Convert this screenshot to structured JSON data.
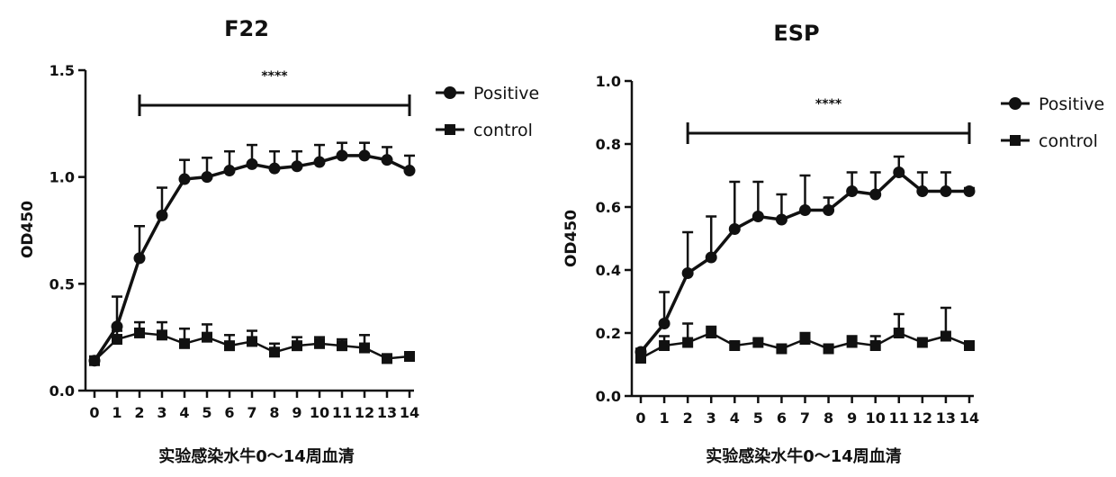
{
  "chart_data": [
    {
      "type": "line",
      "title": "F22",
      "ylabel": "OD450",
      "xlabel": "实验感染水牛0～14周血清",
      "ylim": [
        0,
        1.5
      ],
      "y_ticks": [
        "0.0",
        "0.5",
        "1.0",
        "1.5"
      ],
      "categories": [
        "0",
        "1",
        "2",
        "3",
        "4",
        "5",
        "6",
        "7",
        "8",
        "9",
        "10",
        "11",
        "12",
        "13",
        "14"
      ],
      "series": [
        {
          "name": "Positive",
          "marker": "circle",
          "values": [
            0.14,
            0.3,
            0.62,
            0.82,
            0.99,
            1.0,
            1.03,
            1.06,
            1.04,
            1.05,
            1.07,
            1.1,
            1.1,
            1.08,
            1.03
          ],
          "error": [
            0.01,
            0.14,
            0.15,
            0.13,
            0.09,
            0.09,
            0.09,
            0.09,
            0.08,
            0.07,
            0.08,
            0.06,
            0.06,
            0.06,
            0.07
          ]
        },
        {
          "name": "control",
          "marker": "square",
          "values": [
            0.14,
            0.24,
            0.27,
            0.26,
            0.22,
            0.25,
            0.21,
            0.23,
            0.18,
            0.21,
            0.22,
            0.21,
            0.2,
            0.15,
            0.16
          ],
          "error": [
            0.01,
            0.04,
            0.05,
            0.06,
            0.07,
            0.06,
            0.05,
            0.05,
            0.04,
            0.04,
            0.03,
            0.03,
            0.06,
            0.02,
            0.02
          ]
        }
      ],
      "significance": {
        "label": "****",
        "from": "2",
        "to": "14"
      },
      "legend": "right",
      "grid": false
    },
    {
      "type": "line",
      "title": "ESP",
      "ylabel": "OD450",
      "xlabel": "实验感染水牛0～14周血清",
      "ylim": [
        0,
        1.0
      ],
      "y_ticks": [
        "0.0",
        "0.2",
        "0.4",
        "0.6",
        "0.8",
        "1.0"
      ],
      "categories": [
        "0",
        "1",
        "2",
        "3",
        "4",
        "5",
        "6",
        "7",
        "8",
        "9",
        "10",
        "11",
        "12",
        "13",
        "14"
      ],
      "series": [
        {
          "name": "Positive",
          "marker": "circle",
          "values": [
            0.14,
            0.23,
            0.39,
            0.44,
            0.53,
            0.57,
            0.56,
            0.59,
            0.59,
            0.65,
            0.64,
            0.71,
            0.65,
            0.65,
            0.65
          ],
          "error": [
            0.01,
            0.1,
            0.13,
            0.13,
            0.15,
            0.11,
            0.08,
            0.11,
            0.04,
            0.06,
            0.07,
            0.05,
            0.06,
            0.06,
            0.01
          ]
        },
        {
          "name": "control",
          "marker": "square",
          "values": [
            0.12,
            0.16,
            0.17,
            0.2,
            0.16,
            0.17,
            0.15,
            0.18,
            0.15,
            0.17,
            0.16,
            0.2,
            0.17,
            0.19,
            0.16
          ],
          "error": [
            0.01,
            0.03,
            0.06,
            0.02,
            0.01,
            0.01,
            0.01,
            0.02,
            0.01,
            0.02,
            0.03,
            0.06,
            0.01,
            0.09,
            0.01
          ]
        }
      ],
      "significance": {
        "label": "****",
        "from": "2",
        "to": "14"
      },
      "legend": "right",
      "grid": false
    }
  ]
}
